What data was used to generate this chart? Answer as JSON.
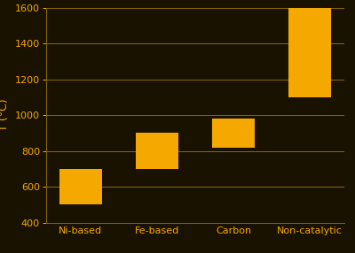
{
  "categories": [
    "Ni-based",
    "Fe-based",
    "Carbon",
    "Non-catalytic"
  ],
  "bar_bottoms": [
    500,
    700,
    820,
    1100
  ],
  "bar_tops": [
    700,
    900,
    980,
    1600
  ],
  "bar_color": "#F5A800",
  "background_color": "#1a1200",
  "grid_color": "#8B6A00",
  "text_color": "#F5A800",
  "ylabel": "T (°C)",
  "ylim": [
    400,
    1600
  ],
  "yticks": [
    400,
    600,
    800,
    1000,
    1200,
    1400,
    1600
  ],
  "tick_fontsize": 8,
  "label_fontsize": 9,
  "bar_width": 0.55
}
